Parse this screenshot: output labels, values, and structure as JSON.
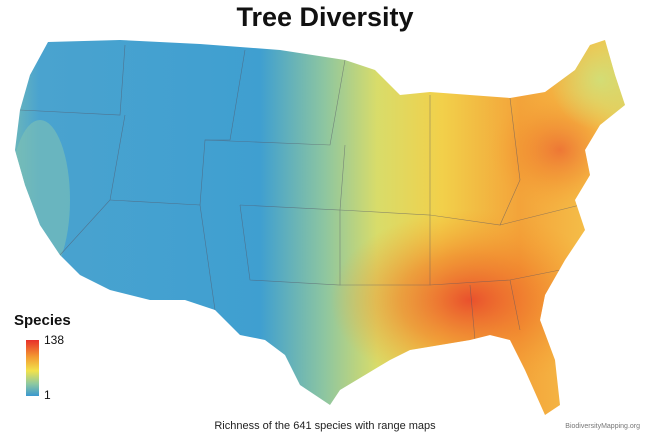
{
  "title": "Tree Diversity",
  "legend": {
    "title": "Species",
    "max": 138,
    "min": 1
  },
  "caption": "Richness of the 641 species with range maps",
  "credit": "BiodiversityMapping.org"
}
